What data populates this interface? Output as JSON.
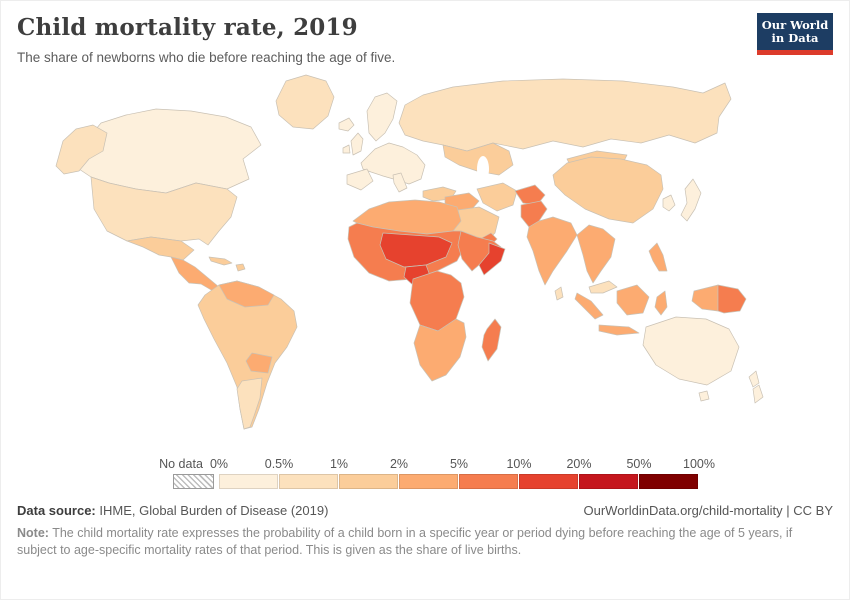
{
  "header": {
    "title": "Child mortality rate, 2019",
    "subtitle": "The share of newborns who die before reaching the age of five.",
    "logo": {
      "line1": "Our World",
      "line2": "in Data",
      "bg_color": "#1d3d63",
      "accent_color": "#dc3b2b"
    }
  },
  "legend": {
    "no_data_label": "No data",
    "tick_labels": [
      "0%",
      "0.5%",
      "1%",
      "2%",
      "5%",
      "10%",
      "20%",
      "50%",
      "100%"
    ],
    "bin_colors": [
      "#fdf0dc",
      "#fce1bd",
      "#fbcd9a",
      "#fcab71",
      "#f57d4f",
      "#e6422e",
      "#c5161d",
      "#7f0000"
    ]
  },
  "map": {
    "region_colors": {
      "alaska": "#fce1bd",
      "canada": "#fdf0dc",
      "greenland": "#fce1bd",
      "usa": "#fce1bd",
      "mexico": "#fbcd9a",
      "central_america": "#fcab71",
      "cuba": "#fbcd9a",
      "hispaniola": "#fbcd9a",
      "south_america": "#fbcd9a",
      "venezuela_guyanas": "#fcab71",
      "bolivia": "#fcab71",
      "southern_cone": "#fce1bd",
      "iceland": "#fdf0dc",
      "uk": "#fdf0dc",
      "ireland": "#fdf0dc",
      "scandinavia": "#fdf0dc",
      "europe": "#fdf0dc",
      "iberia": "#fdf0dc",
      "italy": "#fdf0dc",
      "turkey": "#fbcd9a",
      "russia": "#fce1bd",
      "central_asia": "#fbcd9a",
      "mongolia": "#fbcd9a",
      "china": "#fbcd9a",
      "korea": "#fdf0dc",
      "japan": "#fdf0dc",
      "iran": "#fbcd9a",
      "iraq_levant": "#fcab71",
      "arabia": "#fbcd9a",
      "yemen_oman": "#f57d4f",
      "afghanistan": "#f57d4f",
      "pakistan": "#f57d4f",
      "india": "#fcab71",
      "sri_lanka": "#fce1bd",
      "north_africa": "#fcab71",
      "west_africa": "#f57d4f",
      "sahel_core": "#e6422e",
      "nigeria": "#e6422e",
      "ethiopia": "#f57d4f",
      "somalia": "#e6422e",
      "central_africa": "#f57d4f",
      "southern_africa": "#fcab71",
      "madagascar": "#f57d4f",
      "indochina": "#fcab71",
      "malaysia": "#fce1bd",
      "sumatra": "#fcab71",
      "java": "#fcab71",
      "borneo": "#fcab71",
      "sulawesi": "#fcab71",
      "philippines": "#fcab71",
      "west_new_guinea": "#fcab71",
      "png": "#f57d4f",
      "australia": "#fdf0dc",
      "tasmania": "#fdf0dc",
      "new_zealand_north": "#fdf0dc",
      "new_zealand_south": "#fdf0dc"
    }
  },
  "footer": {
    "source_label": "Data source:",
    "source_text": " IHME, Global Burden of Disease (2019)",
    "credit": "OurWorldinData.org/child-mortality | CC BY",
    "note_label": "Note:",
    "note_text": " The child mortality rate expresses the probability of a child born in a specific year or period dying before reaching the age of 5 years, if subject to age-specific mortality rates of that period. This is given as the share of live births."
  },
  "chart_data": {
    "type": "choropleth",
    "title": "Child mortality rate, 2019",
    "subtitle": "The share of newborns who die before reaching the age of five.",
    "unit": "%",
    "legend_position": "bottom",
    "no_data": {
      "label": "No data",
      "pattern": "diagonal-hatch"
    },
    "legend_bins": [
      {
        "range": "0–0.5%",
        "color": "#fdf0dc"
      },
      {
        "range": "0.5–1%",
        "color": "#fce1bd"
      },
      {
        "range": "1–2%",
        "color": "#fbcd9a"
      },
      {
        "range": "2–5%",
        "color": "#fcab71"
      },
      {
        "range": "5–10%",
        "color": "#f57d4f"
      },
      {
        "range": "10–20%",
        "color": "#e6422e"
      },
      {
        "range": "20–50%",
        "color": "#c5161d"
      },
      {
        "range": "50–100%",
        "color": "#7f0000"
      }
    ],
    "regions": [
      {
        "region": "Canada",
        "bin": "0–0.5%"
      },
      {
        "region": "United States",
        "bin": "0.5–1%"
      },
      {
        "region": "Greenland",
        "bin": "0.5–1%"
      },
      {
        "region": "Mexico",
        "bin": "1–2%"
      },
      {
        "region": "Central America",
        "bin": "2–5%"
      },
      {
        "region": "Caribbean",
        "bin": "1–2%"
      },
      {
        "region": "South America (most)",
        "bin": "1–2%"
      },
      {
        "region": "Venezuela & Guianas",
        "bin": "2–5%"
      },
      {
        "region": "Bolivia",
        "bin": "2–5%"
      },
      {
        "region": "Argentina & Chile",
        "bin": "0.5–1%"
      },
      {
        "region": "Western & Northern Europe",
        "bin": "0–0.5%"
      },
      {
        "region": "Turkey",
        "bin": "1–2%"
      },
      {
        "region": "Russia",
        "bin": "0.5–1%"
      },
      {
        "region": "Central Asia",
        "bin": "1–2%"
      },
      {
        "region": "China & Mongolia",
        "bin": "1–2%"
      },
      {
        "region": "Japan & South Korea",
        "bin": "0–0.5%"
      },
      {
        "region": "Iran & Arabian Peninsula",
        "bin": "1–2%"
      },
      {
        "region": "Iraq & Levant",
        "bin": "2–5%"
      },
      {
        "region": "Yemen",
        "bin": "5–10%"
      },
      {
        "region": "Afghanistan",
        "bin": "5–10%"
      },
      {
        "region": "Pakistan",
        "bin": "5–10%"
      },
      {
        "region": "India",
        "bin": "2–5%"
      },
      {
        "region": "North Africa",
        "bin": "2–5%"
      },
      {
        "region": "West Africa coastal",
        "bin": "5–10%"
      },
      {
        "region": "Sahel (Mali, Niger, Chad, CAR)",
        "bin": "10–20%"
      },
      {
        "region": "Nigeria",
        "bin": "10–20%"
      },
      {
        "region": "Somalia",
        "bin": "10–20%"
      },
      {
        "region": "Ethiopia",
        "bin": "5–10%"
      },
      {
        "region": "Central & East Africa",
        "bin": "5–10%"
      },
      {
        "region": "Southern Africa",
        "bin": "2–5%"
      },
      {
        "region": "Madagascar",
        "bin": "5–10%"
      },
      {
        "region": "Mainland Southeast Asia",
        "bin": "2–5%"
      },
      {
        "region": "Malaysia & Thailand",
        "bin": "0.5–1%"
      },
      {
        "region": "Indonesia",
        "bin": "2–5%"
      },
      {
        "region": "Philippines",
        "bin": "2–5%"
      },
      {
        "region": "Papua New Guinea",
        "bin": "5–10%"
      },
      {
        "region": "Australia & New Zealand",
        "bin": "0–0.5%"
      }
    ]
  }
}
